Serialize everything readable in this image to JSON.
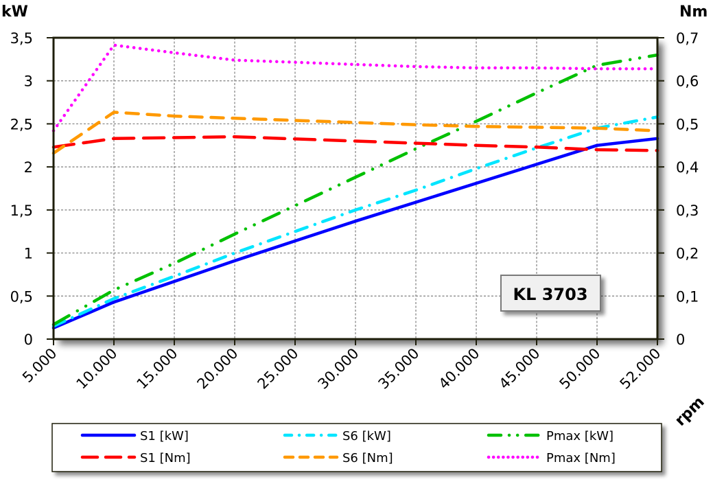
{
  "chart_data": {
    "type": "line",
    "title": "KL 3703",
    "xlabel": "rpm",
    "ylabel": "kW",
    "ylabel_right": "Nm",
    "categories": [
      "5.000",
      "10.000",
      "15.000",
      "20.000",
      "25.000",
      "30.000",
      "35.000",
      "40.000",
      "45.000",
      "50.000",
      "52.000"
    ],
    "x": [
      5000,
      10000,
      15000,
      20000,
      25000,
      30000,
      35000,
      40000,
      45000,
      50000,
      52000
    ],
    "ylim": [
      0,
      3.5
    ],
    "ylim_right": [
      0,
      0.7
    ],
    "yticks": [
      "0",
      "0,5",
      "1",
      "1,5",
      "2",
      "2,5",
      "3",
      "3,5"
    ],
    "yticks_right": [
      "0",
      "0,1",
      "0,2",
      "0,3",
      "0,4",
      "0,5",
      "0,6",
      "0,7"
    ],
    "grid": true,
    "legend_position": "bottom",
    "series": [
      {
        "name": "S1 [kW]",
        "axis": "left",
        "color": "#0000ff",
        "style": "solid",
        "values": [
          0.13,
          0.43,
          0.67,
          0.91,
          1.14,
          1.37,
          1.59,
          1.81,
          2.03,
          2.25,
          2.33
        ]
      },
      {
        "name": "S6 [kW]",
        "axis": "left",
        "color": "#00e5ff",
        "style": "dash-dot",
        "values": [
          0.15,
          0.47,
          0.73,
          1.0,
          1.25,
          1.5,
          1.73,
          1.98,
          2.22,
          2.45,
          2.58
        ]
      },
      {
        "name": "Pmax [kW]",
        "axis": "left",
        "color": "#00c000",
        "style": "dash-dot-dot",
        "values": [
          0.17,
          0.57,
          0.88,
          1.22,
          1.55,
          1.88,
          2.21,
          2.53,
          2.86,
          3.18,
          3.3
        ]
      },
      {
        "name": "S1 [Nm]",
        "axis": "right",
        "color": "#ff0000",
        "style": "long-dash",
        "values": [
          0.446,
          0.466,
          0.468,
          0.47,
          0.465,
          0.46,
          0.455,
          0.45,
          0.446,
          0.44,
          0.438
        ]
      },
      {
        "name": "S6 [Nm]",
        "axis": "right",
        "color": "#ff9900",
        "style": "dash",
        "values": [
          0.432,
          0.527,
          0.518,
          0.513,
          0.508,
          0.503,
          0.498,
          0.494,
          0.492,
          0.49,
          0.484
        ]
      },
      {
        "name": "Pmax [Nm]",
        "axis": "right",
        "color": "#ff00ff",
        "style": "dotted",
        "values": [
          0.484,
          0.683,
          0.665,
          0.648,
          0.643,
          0.638,
          0.633,
          0.63,
          0.63,
          0.628,
          0.628
        ]
      }
    ]
  },
  "axes": {
    "left_unit": "kW",
    "right_unit": "Nm",
    "x_unit": "rpm"
  },
  "badge": {
    "label": "KL 3703"
  },
  "legend": {
    "items": [
      {
        "label": "S1 [kW]"
      },
      {
        "label": "S6 [kW]"
      },
      {
        "label": "Pmax [kW]"
      },
      {
        "label": "S1 [Nm]"
      },
      {
        "label": "S6 [Nm]"
      },
      {
        "label": "Pmax [Nm]"
      }
    ]
  },
  "colors": {
    "frame": "#1e1e0a",
    "grid": "#808080",
    "shadow": "#9a9a9a",
    "badge_bg": "#f0f0f0",
    "badge_border": "#7a7a7a"
  }
}
